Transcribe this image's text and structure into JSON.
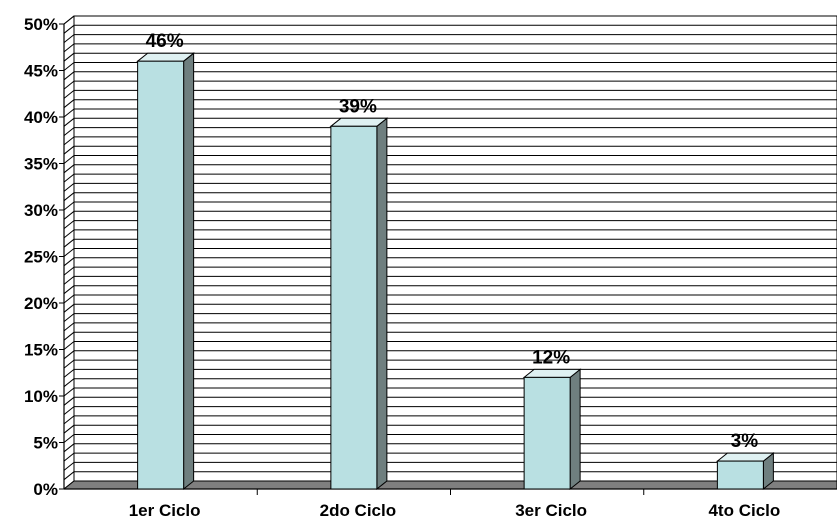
{
  "chart_data": {
    "type": "bar",
    "categories": [
      "1er Ciclo",
      "2do Ciclo",
      "3er Ciclo",
      "4to Ciclo"
    ],
    "values": [
      46,
      39,
      12,
      3
    ],
    "data_labels": [
      "46%",
      "39%",
      "12%",
      "3%"
    ],
    "ylim": [
      0,
      50
    ],
    "y_tick_labels": [
      "0%",
      "5%",
      "10%",
      "15%",
      "20%",
      "25%",
      "30%",
      "35%",
      "40%",
      "45%",
      "50%"
    ],
    "grid": true,
    "three_d": true,
    "colors": {
      "bar_front": "#b9e0e2",
      "bar_side": "#6f7f7f",
      "bar_top": "#dff1f2",
      "floor": "#7f7f7f",
      "grid": "#000000"
    }
  }
}
